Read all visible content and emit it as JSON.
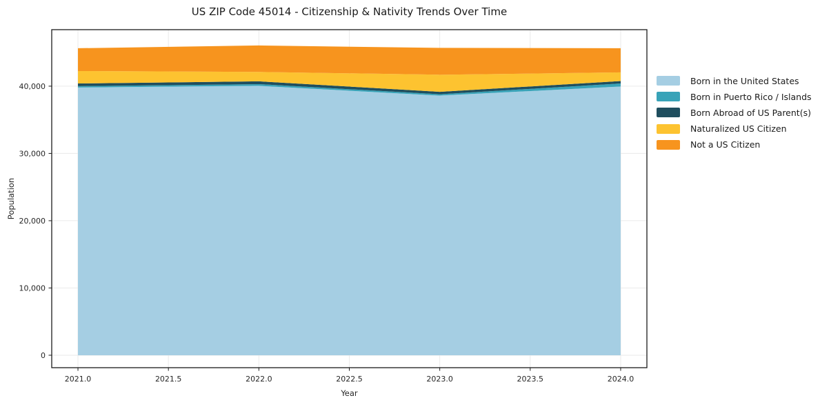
{
  "chart_data": {
    "type": "area",
    "stacked": true,
    "title": "US ZIP Code 45014 - Citizenship & Nativity Trends Over Time",
    "xlabel": "Year",
    "ylabel": "Population",
    "x": [
      2021,
      2022,
      2023,
      2024
    ],
    "series": [
      {
        "key": "born-us",
        "name": "Born in the United States",
        "color": "#a5cee3",
        "values": [
          39800,
          40050,
          38600,
          39950
        ]
      },
      {
        "key": "born-pr",
        "name": "Born in Puerto Rico / Islands",
        "color": "#38a3b8",
        "values": [
          200,
          250,
          200,
          450
        ]
      },
      {
        "key": "born-abroad",
        "name": "Born Abroad of US Parent(s)",
        "color": "#1f4e5e",
        "values": [
          400,
          420,
          360,
          360
        ]
      },
      {
        "key": "naturalized",
        "name": "Naturalized US Citizen",
        "color": "#fdc330",
        "values": [
          1850,
          1400,
          2540,
          1290
        ]
      },
      {
        "key": "not-citizen",
        "name": "Not a US Citizen",
        "color": "#f7941e",
        "values": [
          3390,
          3930,
          3990,
          3590
        ]
      }
    ],
    "totals": [
      45640,
      46050,
      45690,
      45640
    ],
    "xlim": [
      2020.855,
      2024.145
    ],
    "ylim": [
      -1850,
      48400
    ],
    "xticks": {
      "values": [
        2021.0,
        2021.5,
        2022.0,
        2022.5,
        2023.0,
        2023.5,
        2024.0
      ],
      "labels": [
        "2021.0",
        "2021.5",
        "2022.0",
        "2022.5",
        "2023.0",
        "2023.5",
        "2024.0"
      ]
    },
    "yticks": {
      "values": [
        0,
        10000,
        20000,
        30000,
        40000
      ],
      "labels": [
        "0",
        "10,000",
        "20,000",
        "30,000",
        "40,000"
      ]
    },
    "grid": true,
    "legend_position": "right-outside",
    "colors": {
      "grid": "#eaeaea",
      "spine": "#1a1a1a",
      "tick_text": "#262626",
      "background": "#ffffff"
    }
  }
}
